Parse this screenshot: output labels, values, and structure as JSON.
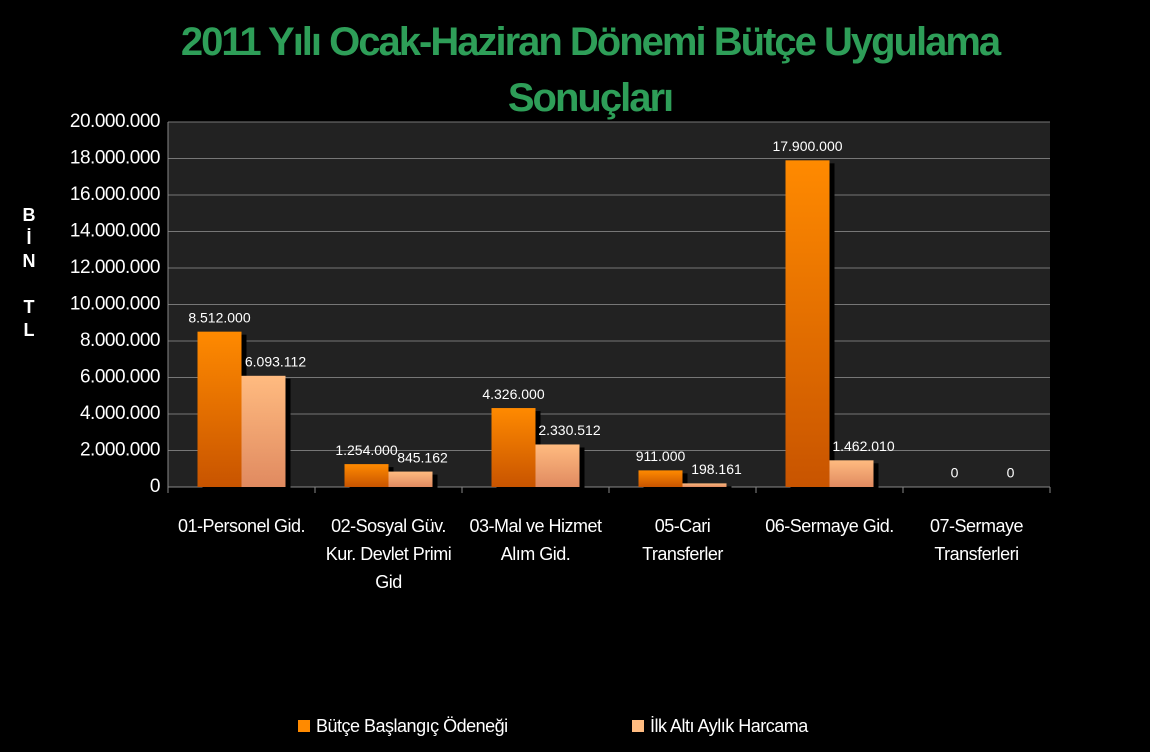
{
  "chart_data": {
    "type": "bar",
    "title": "2011 Yılı Ocak-Haziran Dönemi Bütçe Uygulama Sonuçları",
    "y_label": "BİN TL",
    "categories": [
      "01-Personel Gid.",
      "02-Sosyal Güv. Kur. Devlet Primi Gid",
      "03-Mal ve Hizmet Alım Gid.",
      "05-Cari Transferler",
      "06-Sermaye Gid.",
      "07-Sermaye Transferleri"
    ],
    "series": [
      {
        "name": "Bütçe Başlangıç Ödeneği",
        "color": "#ff8a00",
        "values": [
          8512000,
          1254000,
          4326000,
          911000,
          17900000,
          0
        ],
        "value_labels": [
          "8.512.000",
          "1.254.000",
          "4.326.000",
          "911.000",
          "17.900.000",
          "0"
        ]
      },
      {
        "name": "İlk Altı Aylık Harcama",
        "color": "#ffbb80",
        "values": [
          6093112,
          845162,
          2330512,
          198161,
          1462010,
          0
        ],
        "value_labels": [
          "6.093.112",
          "845.162",
          "2.330.512",
          "198.161",
          "1.462.010",
          "0"
        ]
      }
    ],
    "ylim": [
      0,
      20000000
    ],
    "yticks": [
      0,
      {
        "value": 2000000,
        "label": "2.000.000"
      },
      {
        "value": 4000000,
        "label": "4.000.000"
      },
      {
        "value": 6000000,
        "label": "6.000.000"
      },
      {
        "value": 8000000,
        "label": "8.000.000"
      },
      {
        "value": 10000000,
        "label": "10.000.000"
      },
      {
        "value": 12000000,
        "label": "12.000.000"
      },
      {
        "value": 14000000,
        "label": "14.000.000"
      },
      {
        "value": 16000000,
        "label": "16.000.000"
      },
      {
        "value": 18000000,
        "label": "18.000.000"
      },
      {
        "value": 20000000,
        "label": "20.000.000"
      }
    ],
    "grid": true,
    "legend": "bottom"
  }
}
